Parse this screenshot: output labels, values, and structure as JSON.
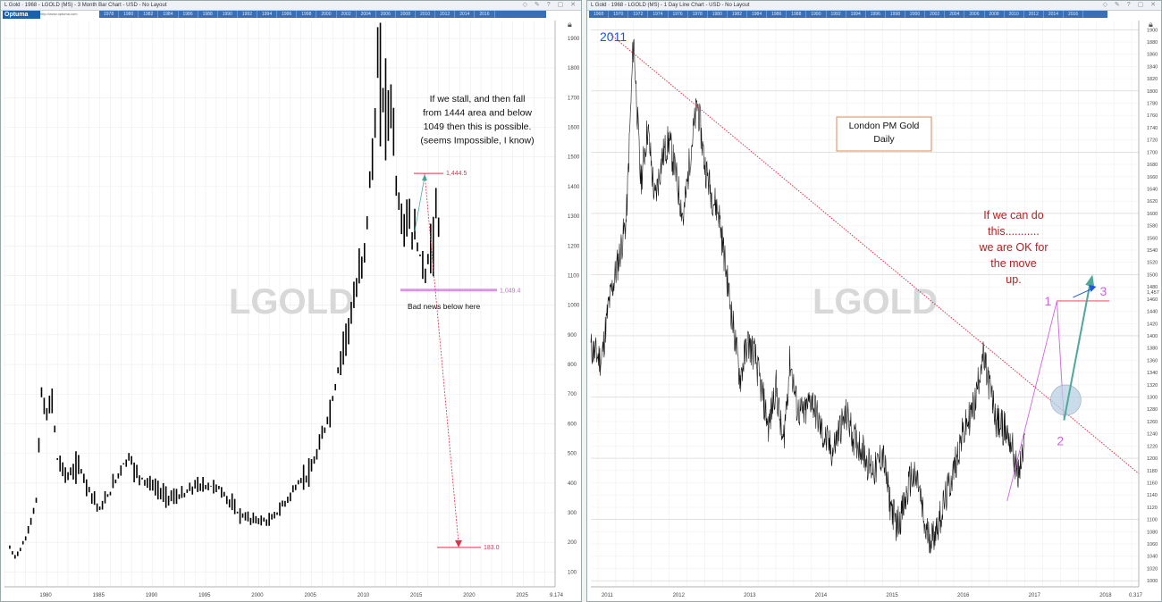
{
  "left": {
    "title": "L Gold · 1968 - LGOLD (MS) - 3 Month Bar Chart - USD - No Layout",
    "logo": "Optuma",
    "logo_url": "http://www.optuma.com",
    "timebar": [
      "1978",
      "1980",
      "1982",
      "1984",
      "1986",
      "1988",
      "1990",
      "1992",
      "1994",
      "1996",
      "1998",
      "2000",
      "2002",
      "2004",
      "2006",
      "2008",
      "2010",
      "2012",
      "2014",
      "2016"
    ],
    "watermark": "LGOLD",
    "scale_value": "9.174",
    "annotations": {
      "note_lines": [
        "If we stall, and then fall",
        "from  1444 area and below",
        "1049 then this is possible.",
        "(seems Impossible, I know)"
      ],
      "bad_news": "Bad news below here",
      "level_high": "1,444.5",
      "level_mid": "1,049.4",
      "level_target": "183.0"
    }
  },
  "right": {
    "title": "L Gold · 1968 - LGOLD (MS) - 1 Day Line Chart - USD - No Layout",
    "timebar": [
      "1968",
      "1970",
      "1972",
      "1974",
      "1976",
      "1978",
      "1980",
      "1982",
      "1984",
      "1986",
      "1988",
      "1990",
      "1992",
      "1994",
      "1996",
      "1998",
      "2000",
      "2002",
      "2004",
      "2006",
      "2008",
      "2010",
      "2012",
      "2014",
      "2016"
    ],
    "watermark": "LGOLD",
    "scale_value": "0.317",
    "annotations": {
      "year_label": "2011",
      "box_lines": [
        "London PM Gold",
        "Daily"
      ],
      "note_lines": [
        "If we can do",
        "this...........",
        "we are OK for",
        "the move",
        "up."
      ],
      "wave_1": "1",
      "wave_2": "2",
      "wave_3": "3",
      "price_tag": "1,457"
    }
  },
  "colors": {
    "red": "#e0314a",
    "magenta": "#cc66dd",
    "teal": "#4fa89a",
    "blue": "#2255dd",
    "dark_red": "#b02222",
    "orange_box": "#d98a5a"
  },
  "chart_data": [
    {
      "type": "bar",
      "title": "",
      "xlabel": "",
      "ylabel": "",
      "x_ticks": [
        "1980",
        "1985",
        "1990",
        "1995",
        "2000",
        "2005",
        "2010",
        "2015",
        "2020",
        "2025"
      ],
      "y_ticks": [
        100,
        200,
        300,
        400,
        500,
        600,
        700,
        800,
        900,
        1000,
        1100,
        1200,
        1300,
        1400,
        1500,
        1600,
        1700,
        1800,
        1900
      ],
      "xlim": [
        1976,
        2028
      ],
      "ylim": [
        50,
        1960
      ],
      "grid": true,
      "series": [
        {
          "x": [
            1976.5,
            1977,
            1978,
            1979,
            1979.5,
            1980,
            1980.5,
            1981,
            1982,
            1983,
            1984,
            1985,
            1986,
            1987,
            1987.8,
            1988.5,
            1990,
            1991,
            1992,
            1993,
            1994,
            1996,
            1997,
            1998,
            1999,
            2000,
            2001,
            2002,
            2003,
            2004,
            2005,
            2006,
            2007,
            2008,
            2009,
            2010,
            2011,
            2011.3,
            2011.7,
            2012,
            2012.7,
            2013,
            2013.5,
            2014,
            2015,
            2015.8,
            2016.4,
            2016.7,
            2017
          ],
          "values": [
            180,
            150,
            210,
            340,
            700,
            620,
            690,
            480,
            420,
            460,
            380,
            310,
            370,
            450,
            490,
            430,
            390,
            360,
            350,
            360,
            390,
            390,
            350,
            300,
            280,
            275,
            270,
            310,
            360,
            410,
            440,
            550,
            680,
            870,
            1000,
            1200,
            1600,
            1820,
            1700,
            1680,
            1650,
            1400,
            1280,
            1290,
            1200,
            1100,
            1220,
            1300,
            1270
          ]
        }
      ],
      "annotations": [
        {
          "value": 1444.5,
          "label": "1,444.5"
        },
        {
          "value": 1049.4,
          "label": "1,049.4"
        },
        {
          "value": 183.0,
          "label": "183.0"
        }
      ]
    },
    {
      "type": "line",
      "title": "London PM Gold Daily",
      "xlabel": "",
      "ylabel": "",
      "x_ticks": [
        "2011",
        "2012",
        "2013",
        "2014",
        "2015",
        "2016",
        "2017",
        "2018"
      ],
      "y_ticks": [
        1000,
        1020,
        1040,
        1060,
        1080,
        1100,
        1120,
        1140,
        1160,
        1180,
        1200,
        1220,
        1240,
        1260,
        1280,
        1300,
        1320,
        1340,
        1360,
        1380,
        1400,
        1420,
        1440,
        1460,
        1480,
        1500,
        1520,
        1540,
        1560,
        1580,
        1600,
        1620,
        1640,
        1660,
        1680,
        1700,
        1720,
        1740,
        1760,
        1780,
        1800,
        1820,
        1840,
        1860,
        1880,
        1900
      ],
      "xlim": [
        2010.9,
        2018.6
      ],
      "ylim": [
        990,
        1915
      ],
      "grid": true,
      "series": [
        {
          "x": [
            2010.9,
            2011.05,
            2011.15,
            2011.3,
            2011.4,
            2011.5,
            2011.6,
            2011.7,
            2011.8,
            2011.9,
            2012.0,
            2012.1,
            2012.2,
            2012.3,
            2012.4,
            2012.5,
            2012.6,
            2012.7,
            2012.85,
            2013.0,
            2013.1,
            2013.2,
            2013.3,
            2013.4,
            2013.5,
            2013.6,
            2013.7,
            2013.8,
            2013.9,
            2014.0,
            2014.15,
            2014.3,
            2014.4,
            2014.5,
            2014.6,
            2014.7,
            2014.8,
            2014.9,
            2015.0,
            2015.1,
            2015.2,
            2015.3,
            2015.4,
            2015.5,
            2015.6,
            2015.7,
            2015.8,
            2015.9,
            2016.0,
            2016.1,
            2016.2,
            2016.3,
            2016.4,
            2016.5,
            2016.6,
            2016.7,
            2016.8,
            2016.9,
            2017.0
          ],
          "values": [
            1380,
            1360,
            1450,
            1530,
            1590,
            1890,
            1650,
            1740,
            1620,
            1690,
            1720,
            1660,
            1590,
            1700,
            1780,
            1680,
            1630,
            1600,
            1460,
            1330,
            1390,
            1370,
            1310,
            1250,
            1320,
            1220,
            1360,
            1280,
            1270,
            1300,
            1240,
            1210,
            1250,
            1270,
            1230,
            1220,
            1190,
            1180,
            1210,
            1130,
            1090,
            1120,
            1170,
            1160,
            1080,
            1070,
            1100,
            1140,
            1180,
            1230,
            1260,
            1290,
            1370,
            1320,
            1260,
            1250,
            1230,
            1170,
            1220
          ]
        }
      ],
      "annotations": [
        {
          "label": "1",
          "x": 2017.45,
          "y": 1457
        },
        {
          "label": "2",
          "x": 2017.55,
          "y": 1262
        },
        {
          "label": "3",
          "x": 2017.95,
          "y": 1497
        },
        {
          "label": "1,457",
          "x": 2017.45,
          "y": 1457
        }
      ]
    }
  ]
}
